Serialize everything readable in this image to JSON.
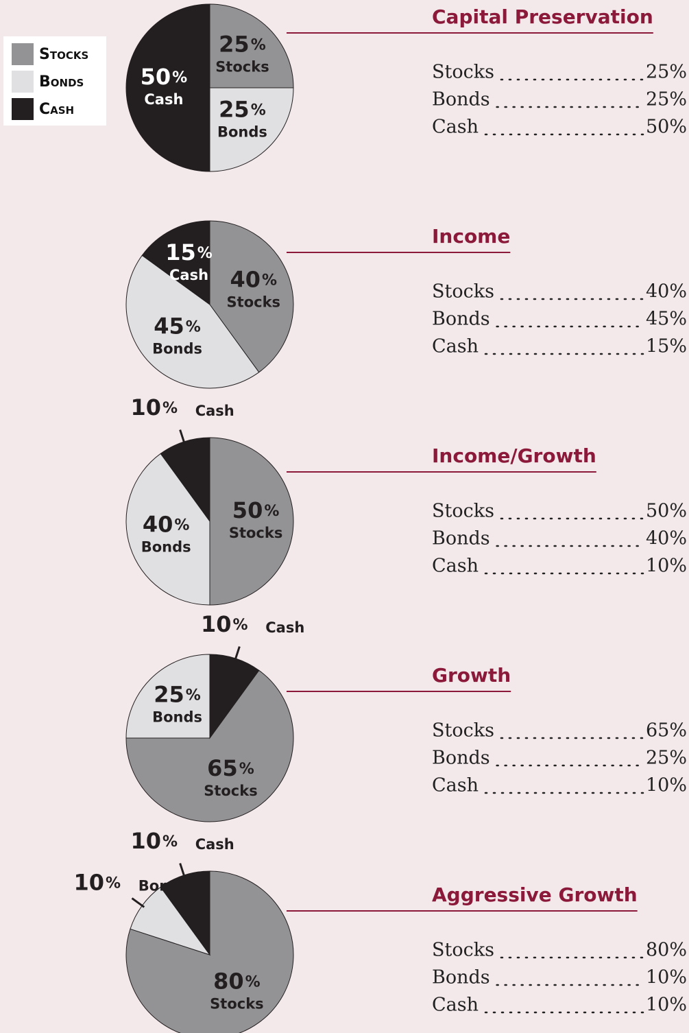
{
  "chart_data": [
    {
      "type": "pie",
      "title": "Capital Preservation",
      "categories": [
        "Stocks",
        "Bonds",
        "Cash"
      ],
      "values": [
        25,
        25,
        50
      ],
      "value_labels": [
        "25%",
        "25%",
        "50%"
      ],
      "colors": [
        "#939395",
        "#e0e0e2",
        "#231f20"
      ]
    },
    {
      "type": "pie",
      "title": "Income",
      "categories": [
        "Stocks",
        "Bonds",
        "Cash"
      ],
      "values": [
        40,
        45,
        15
      ],
      "value_labels": [
        "40%",
        "45%",
        "15%"
      ],
      "colors": [
        "#939395",
        "#e0e0e2",
        "#231f20"
      ]
    },
    {
      "type": "pie",
      "title": "Income/Growth",
      "categories": [
        "Stocks",
        "Bonds",
        "Cash"
      ],
      "values": [
        50,
        40,
        10
      ],
      "value_labels": [
        "50%",
        "40%",
        "10%"
      ],
      "colors": [
        "#939395",
        "#e0e0e2",
        "#231f20"
      ]
    },
    {
      "type": "pie",
      "title": "Growth",
      "categories": [
        "Stocks",
        "Bonds",
        "Cash"
      ],
      "values": [
        65,
        25,
        10
      ],
      "value_labels": [
        "65%",
        "25%",
        "10%"
      ],
      "colors": [
        "#939395",
        "#e0e0e2",
        "#231f20"
      ]
    },
    {
      "type": "pie",
      "title": "Aggressive Growth",
      "categories": [
        "Stocks",
        "Bonds",
        "Cash"
      ],
      "values": [
        80,
        10,
        10
      ],
      "value_labels": [
        "80%",
        "10%",
        "10%"
      ],
      "colors": [
        "#939395",
        "#e0e0e2",
        "#231f20"
      ]
    }
  ]
}
